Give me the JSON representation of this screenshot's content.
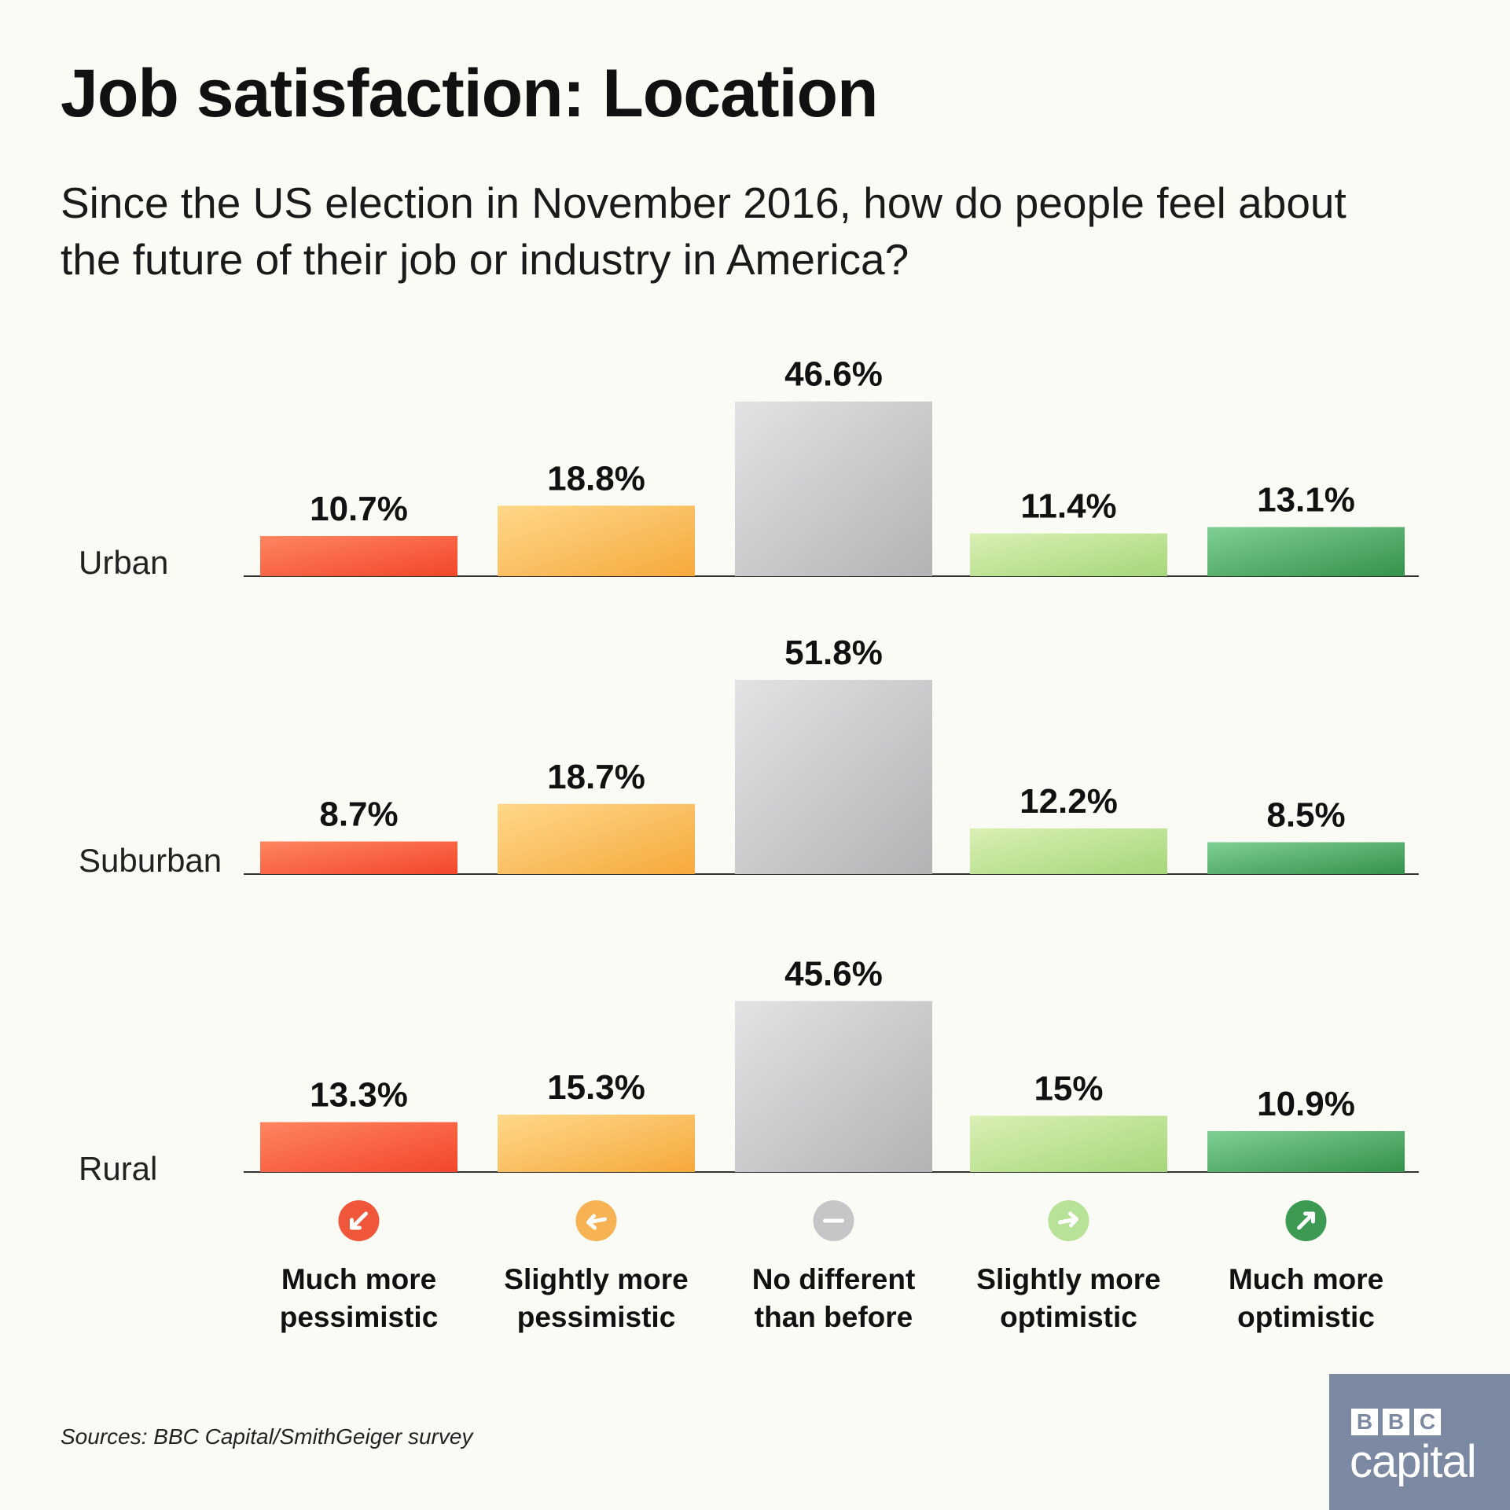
{
  "title": "Job satisfaction: Location",
  "subtitle": "Since the US election in November 2016, how do people feel about the future of their job or industry in America?",
  "source": "Sources: BBC Capital/SmithGeiger survey",
  "logo": {
    "letters": [
      "B",
      "B",
      "C"
    ],
    "word": "capital"
  },
  "chart_data": {
    "type": "bar",
    "title": "Job satisfaction: Location",
    "categories": [
      "Much more pessimistic",
      "Slightly more pessimistic",
      "No different than before",
      "Slightly more optimistic",
      "Much more optimistic"
    ],
    "category_lines": [
      [
        "Much more",
        "pessimistic"
      ],
      [
        "Slightly more",
        "pessimistic"
      ],
      [
        "No different",
        "than before"
      ],
      [
        "Slightly more",
        "optimistic"
      ],
      [
        "Much more",
        "optimistic"
      ]
    ],
    "category_icons": [
      "arrow-down-left-icon",
      "arrow-left-icon",
      "minus-icon",
      "arrow-right-icon",
      "arrow-up-right-icon"
    ],
    "colors": [
      [
        "#ff8560",
        "#f2462a"
      ],
      [
        "#ffd88a",
        "#f6a93c"
      ],
      [
        "#e3e3e6",
        "#b3b3b6"
      ],
      [
        "#d9f0b5",
        "#a6d67a"
      ],
      [
        "#7fcf94",
        "#34924a"
      ]
    ],
    "icon_colors": [
      "#f0563a",
      "#f7b253",
      "#c6c6c9",
      "#b8e298",
      "#3c9a52"
    ],
    "series": [
      {
        "name": "Urban",
        "values": [
          10.7,
          18.8,
          46.6,
          11.4,
          13.1
        ],
        "labels": [
          "10.7%",
          "18.8%",
          "46.6%",
          "11.4%",
          "13.1%"
        ]
      },
      {
        "name": "Suburban",
        "values": [
          8.7,
          18.7,
          51.8,
          12.2,
          8.5
        ],
        "labels": [
          "8.7%",
          "18.7%",
          "51.8%",
          "12.2%",
          "8.5%"
        ]
      },
      {
        "name": "Rural",
        "values": [
          13.3,
          15.3,
          45.6,
          15,
          10.9
        ],
        "labels": [
          "13.3%",
          "15.3%",
          "45.6%",
          "15%",
          "10.9%"
        ]
      }
    ],
    "unit": "%",
    "grid": false
  }
}
